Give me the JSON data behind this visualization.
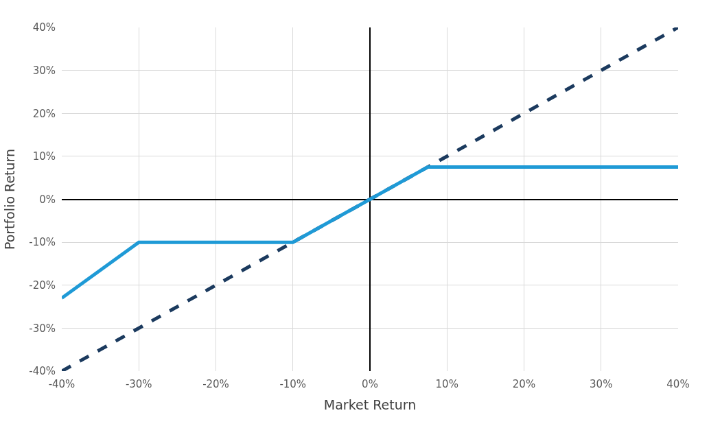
{
  "chart_data": {
    "type": "line",
    "xlabel": "Market Return",
    "ylabel": "Portfolio Return",
    "series": [
      {
        "color": "#1f9ad6",
        "line_style": "solid",
        "x": [
          -40,
          -30,
          -10,
          7.5,
          40
        ],
        "values": [
          -23,
          -10,
          -10,
          7.5,
          7.5
        ]
      },
      {
        "color": "#1b3a5e",
        "line_style": "dashed",
        "x": [
          -40,
          40
        ],
        "values": [
          -40,
          40
        ]
      }
    ],
    "xlim": [
      -40,
      40
    ],
    "ylim": [
      -40,
      40
    ],
    "xticks": [
      {
        "value": -40,
        "label": "-40%"
      },
      {
        "value": -30,
        "label": "-30%"
      },
      {
        "value": -20,
        "label": "-20%"
      },
      {
        "value": -10,
        "label": "-10%"
      },
      {
        "value": 0,
        "label": "0%"
      },
      {
        "value": 10,
        "label": "10%"
      },
      {
        "value": 20,
        "label": "20%"
      },
      {
        "value": 30,
        "label": "30%"
      },
      {
        "value": 40,
        "label": "40%"
      }
    ],
    "yticks": [
      {
        "value": -40,
        "label": "-40%"
      },
      {
        "value": -30,
        "label": "-30%"
      },
      {
        "value": -20,
        "label": "-20%"
      },
      {
        "value": -10,
        "label": "-10%"
      },
      {
        "value": 0,
        "label": "0%"
      },
      {
        "value": 10,
        "label": "10%"
      },
      {
        "value": 20,
        "label": "20%"
      },
      {
        "value": 30,
        "label": "30%"
      },
      {
        "value": 40,
        "label": "40%"
      }
    ],
    "grid": true,
    "marker": "none"
  }
}
